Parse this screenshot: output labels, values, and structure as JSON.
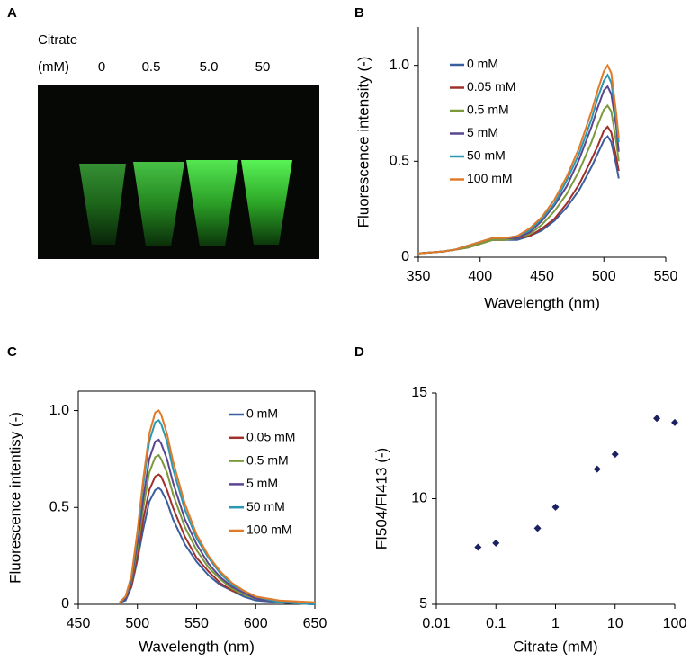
{
  "panel_labels": [
    "A",
    "B",
    "C",
    "D"
  ],
  "photo": {
    "caption": "Citrate",
    "unit": "(mM)",
    "labels": [
      "0",
      "0.5",
      "5.0",
      "50"
    ]
  },
  "chart_data": [
    {
      "type": "line",
      "xlabel": "Wavelength (nm)",
      "ylabel": "Fluorescence intensity (-)",
      "xlim": [
        350,
        550
      ],
      "xticks": [
        350,
        400,
        450,
        500,
        550
      ],
      "ylim": [
        0,
        1.2
      ],
      "yticks": [
        0,
        0.5,
        {
          "value": 1,
          "label": "1.0"
        }
      ],
      "legend": "upper left",
      "grid": false,
      "x": [
        350,
        370,
        380,
        390,
        400,
        410,
        420,
        430,
        440,
        450,
        460,
        470,
        480,
        490,
        495,
        500,
        503,
        506,
        510,
        512
      ],
      "series": [
        {
          "name": "0 mM",
          "color": "#3a5fa0",
          "values": [
            0.02,
            0.03,
            0.04,
            0.05,
            0.07,
            0.09,
            0.09,
            0.09,
            0.11,
            0.14,
            0.19,
            0.26,
            0.35,
            0.47,
            0.54,
            0.61,
            0.63,
            0.6,
            0.48,
            0.41
          ]
        },
        {
          "name": "0.05 mM",
          "color": "#a0302b",
          "values": [
            0.02,
            0.03,
            0.04,
            0.05,
            0.07,
            0.09,
            0.09,
            0.1,
            0.11,
            0.15,
            0.2,
            0.28,
            0.38,
            0.51,
            0.58,
            0.66,
            0.68,
            0.65,
            0.52,
            0.45
          ]
        },
        {
          "name": "0.5 mM",
          "color": "#7a9a3c",
          "values": [
            0.02,
            0.03,
            0.04,
            0.05,
            0.07,
            0.09,
            0.09,
            0.1,
            0.12,
            0.17,
            0.24,
            0.33,
            0.45,
            0.6,
            0.69,
            0.77,
            0.79,
            0.76,
            0.6,
            0.5
          ]
        },
        {
          "name": "5 mM",
          "color": "#5b4590",
          "values": [
            0.02,
            0.03,
            0.04,
            0.06,
            0.08,
            0.1,
            0.1,
            0.1,
            0.13,
            0.19,
            0.27,
            0.37,
            0.51,
            0.68,
            0.78,
            0.87,
            0.89,
            0.85,
            0.68,
            0.55
          ]
        },
        {
          "name": "50 mM",
          "color": "#2a98b0",
          "values": [
            0.02,
            0.03,
            0.04,
            0.06,
            0.08,
            0.1,
            0.1,
            0.11,
            0.14,
            0.2,
            0.28,
            0.4,
            0.54,
            0.72,
            0.83,
            0.92,
            0.95,
            0.91,
            0.72,
            0.6
          ]
        },
        {
          "name": "100 mM",
          "color": "#e07a28",
          "values": [
            0.02,
            0.03,
            0.04,
            0.06,
            0.08,
            0.1,
            0.1,
            0.11,
            0.15,
            0.21,
            0.3,
            0.42,
            0.57,
            0.76,
            0.87,
            0.97,
            1.0,
            0.96,
            0.75,
            0.62
          ]
        }
      ]
    },
    {
      "type": "line",
      "xlabel": "Wavelength (nm)",
      "ylabel": "Fluorescence intentisy (-)",
      "xlim": [
        450,
        650
      ],
      "xticks": [
        450,
        500,
        550,
        600,
        650
      ],
      "ylim": [
        0,
        1.1
      ],
      "yticks": [
        0,
        0.5,
        {
          "value": 1,
          "label": "1.0"
        }
      ],
      "legend": "upper right",
      "grid": false,
      "x": [
        485,
        490,
        495,
        500,
        505,
        510,
        515,
        518,
        520,
        525,
        530,
        540,
        550,
        560,
        570,
        580,
        590,
        600,
        620,
        650
      ],
      "series": [
        {
          "name": "0 mM",
          "color": "#3a5fa0",
          "values": [
            0.01,
            0.02,
            0.09,
            0.23,
            0.39,
            0.53,
            0.59,
            0.6,
            0.59,
            0.53,
            0.44,
            0.31,
            0.22,
            0.15,
            0.1,
            0.07,
            0.04,
            0.02,
            0.01,
            0
          ]
        },
        {
          "name": "0.05 mM",
          "color": "#a0302b",
          "values": [
            0.01,
            0.03,
            0.1,
            0.25,
            0.44,
            0.59,
            0.66,
            0.67,
            0.66,
            0.59,
            0.5,
            0.35,
            0.24,
            0.17,
            0.11,
            0.07,
            0.05,
            0.03,
            0.01,
            0
          ]
        },
        {
          "name": "0.5 mM",
          "color": "#7a9a3c",
          "values": [
            0.01,
            0.03,
            0.12,
            0.29,
            0.5,
            0.68,
            0.76,
            0.77,
            0.75,
            0.68,
            0.57,
            0.4,
            0.28,
            0.19,
            0.13,
            0.08,
            0.05,
            0.03,
            0.01,
            0
          ]
        },
        {
          "name": "5 mM",
          "color": "#5b4590",
          "values": [
            0.01,
            0.03,
            0.13,
            0.32,
            0.55,
            0.75,
            0.84,
            0.85,
            0.83,
            0.75,
            0.63,
            0.44,
            0.31,
            0.21,
            0.14,
            0.09,
            0.06,
            0.03,
            0.01,
            0
          ]
        },
        {
          "name": "50 mM",
          "color": "#2a98b0",
          "values": [
            0.01,
            0.04,
            0.14,
            0.36,
            0.62,
            0.84,
            0.94,
            0.95,
            0.93,
            0.84,
            0.7,
            0.49,
            0.34,
            0.24,
            0.16,
            0.1,
            0.07,
            0.04,
            0.01,
            0
          ]
        },
        {
          "name": "100 mM",
          "color": "#e07a28",
          "values": [
            0.01,
            0.04,
            0.15,
            0.38,
            0.65,
            0.88,
            0.99,
            1.0,
            0.98,
            0.88,
            0.74,
            0.52,
            0.36,
            0.25,
            0.17,
            0.11,
            0.07,
            0.04,
            0.02,
            0.01
          ]
        }
      ]
    },
    {
      "type": "scatter",
      "xlabel": "Citrate (mM)",
      "ylabel": "FI504/FI413 (-)",
      "xlog": true,
      "xlim": [
        0.01,
        100
      ],
      "xticks": [
        0.01,
        0.1,
        1,
        10,
        100
      ],
      "ylim": [
        5,
        15
      ],
      "yticks": [
        5,
        10,
        15
      ],
      "grid": false,
      "color": "#1a2060",
      "x": [
        0.05,
        0.1,
        0.5,
        1,
        5,
        10,
        50,
        100
      ],
      "values": [
        7.7,
        7.9,
        8.6,
        9.6,
        11.4,
        12.1,
        13.8,
        13.6
      ]
    }
  ]
}
